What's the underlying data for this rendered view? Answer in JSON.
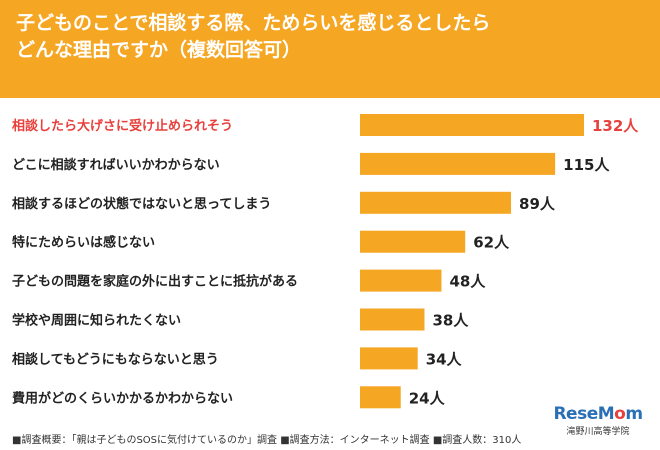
{
  "header": {
    "title_line1": "子どものことで相談する際、ためらいを感じるとしたら",
    "title_line2": "どんな理由ですか（複数回答可）"
  },
  "colors": {
    "header_bg": "#f5a623",
    "bar": "#f5a623",
    "highlight_text": "#e8403c",
    "text": "#222222"
  },
  "chart_data": {
    "type": "bar",
    "orientation": "horizontal",
    "categories": [
      "相談したら大げさに受け止められそう",
      "どこに相談すればいいかわからない",
      "相談するほどの状態ではないと思ってしまう",
      "特にためらいは感じない",
      "子どもの問題を家庭の外に出すことに抵抗がある",
      "学校や周囲に知られたくない",
      "相談してもどうにもならないと思う",
      "費用がどのくらいかかるかわからない"
    ],
    "values": [
      132,
      115,
      89,
      62,
      48,
      38,
      34,
      24
    ],
    "value_labels": [
      "132人",
      "115人",
      "89人",
      "62人",
      "48人",
      "38人",
      "34人",
      "24人"
    ],
    "highlight_index": 0,
    "xlim": [
      0,
      132
    ],
    "grid": false,
    "legend": "none"
  },
  "footer": {
    "note": "■調査概要：「親は子どものSOSに気付けているのか」調査 ■調査方法：インターネット調査 ■調査人数：310人"
  },
  "logo": {
    "brand_main": "ReseM",
    "brand_o": "o",
    "brand_end": "m",
    "caption": "滝野川高等学院"
  }
}
